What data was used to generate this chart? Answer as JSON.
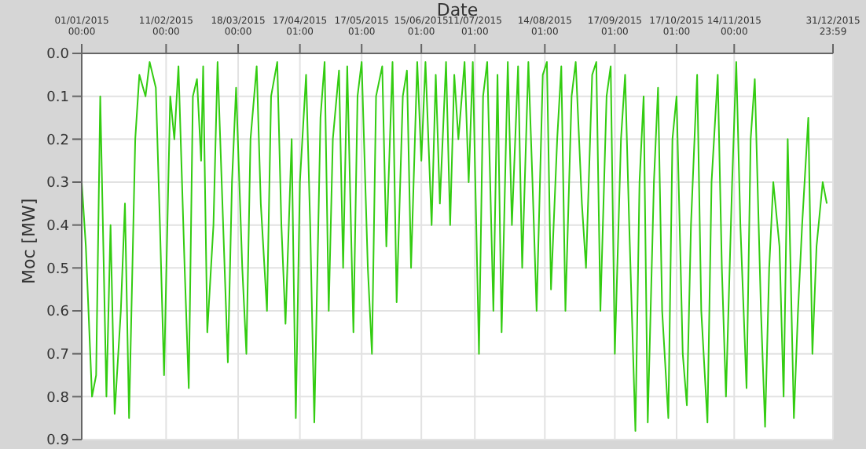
{
  "chart_data": {
    "type": "line",
    "xlabel": "Date",
    "ylabel": "Moc [MW]",
    "grid": true,
    "legend": false,
    "marker": "none",
    "line_style": "solid",
    "xlim": [
      "2015-01-01",
      "2015-12-31T23:59"
    ],
    "xticks": [
      {
        "value": "2015-01-01",
        "label": "01/01/2015 00:00"
      },
      {
        "value": "2015-02-11",
        "label": "11/02/2015 00:00"
      },
      {
        "value": "2015-03-18",
        "label": "18/03/2015 00:00"
      },
      {
        "value": "2015-04-17",
        "label": "17/04/2015 01:00"
      },
      {
        "value": "2015-05-17",
        "label": "17/05/2015 01:00"
      },
      {
        "value": "2015-06-15",
        "label": "15/06/2015 01:00"
      },
      {
        "value": "2015-07-11",
        "label": "11/07/2015 01:00"
      },
      {
        "value": "2015-08-14",
        "label": "14/08/2015 01:00"
      },
      {
        "value": "2015-09-17",
        "label": "17/09/2015 01:00"
      },
      {
        "value": "2015-10-17",
        "label": "17/10/2015 01:00"
      },
      {
        "value": "2015-11-14",
        "label": "14/11/2015 00:00"
      },
      {
        "value": "2015-12-31T23:59",
        "label": "31/12/2015 23:59"
      }
    ],
    "ylim": [
      0.9,
      0
    ],
    "yticks": [
      {
        "value": 0,
        "label": "0.0"
      },
      {
        "value": 0.1,
        "label": "0.1"
      },
      {
        "value": 0.2,
        "label": "0.2"
      },
      {
        "value": 0.3,
        "label": "0.3"
      },
      {
        "value": 0.4,
        "label": "0.4"
      },
      {
        "value": 0.5,
        "label": "0.5"
      },
      {
        "value": 0.6,
        "label": "0.6"
      },
      {
        "value": 0.7,
        "label": "0.7"
      },
      {
        "value": 0.8,
        "label": "0.8"
      },
      {
        "value": 0.9,
        "label": "0.9"
      }
    ],
    "x": [
      "2015-01-01",
      "2015-01-03",
      "2015-01-06",
      "2015-01-08",
      "2015-01-10",
      "2015-01-13",
      "2015-01-15",
      "2015-01-17",
      "2015-01-20",
      "2015-01-22",
      "2015-01-24",
      "2015-01-27",
      "2015-01-29",
      "2015-02-01",
      "2015-02-03",
      "2015-02-06",
      "2015-02-08",
      "2015-02-10",
      "2015-02-13",
      "2015-02-15",
      "2015-02-17",
      "2015-02-20",
      "2015-02-22",
      "2015-02-24",
      "2015-02-26",
      "2015-02-28",
      "2015-03-01",
      "2015-03-03",
      "2015-03-06",
      "2015-03-08",
      "2015-03-10",
      "2015-03-13",
      "2015-03-15",
      "2015-03-17",
      "2015-03-20",
      "2015-03-22",
      "2015-03-24",
      "2015-03-27",
      "2015-03-29",
      "2015-04-01",
      "2015-04-03",
      "2015-04-06",
      "2015-04-08",
      "2015-04-10",
      "2015-04-13",
      "2015-04-15",
      "2015-04-17",
      "2015-04-20",
      "2015-04-22",
      "2015-04-24",
      "2015-04-27",
      "2015-04-29",
      "2015-05-01",
      "2015-05-03",
      "2015-05-06",
      "2015-05-08",
      "2015-05-10",
      "2015-05-13",
      "2015-05-15",
      "2015-05-17",
      "2015-05-20",
      "2015-05-22",
      "2015-05-24",
      "2015-05-27",
      "2015-05-29",
      "2015-06-01",
      "2015-06-03",
      "2015-06-06",
      "2015-06-08",
      "2015-06-10",
      "2015-06-13",
      "2015-06-15",
      "2015-06-17",
      "2015-06-20",
      "2015-06-22",
      "2015-06-24",
      "2015-06-27",
      "2015-06-29",
      "2015-07-01",
      "2015-07-03",
      "2015-07-06",
      "2015-07-08",
      "2015-07-10",
      "2015-07-13",
      "2015-07-15",
      "2015-07-17",
      "2015-07-20",
      "2015-07-22",
      "2015-07-24",
      "2015-07-27",
      "2015-07-29",
      "2015-08-01",
      "2015-08-03",
      "2015-08-06",
      "2015-08-08",
      "2015-08-10",
      "2015-08-13",
      "2015-08-15",
      "2015-08-17",
      "2015-08-20",
      "2015-08-22",
      "2015-08-24",
      "2015-08-27",
      "2015-08-29",
      "2015-09-01",
      "2015-09-03",
      "2015-09-06",
      "2015-09-08",
      "2015-09-10",
      "2015-09-13",
      "2015-09-15",
      "2015-09-17",
      "2015-09-20",
      "2015-09-22",
      "2015-09-24",
      "2015-09-27",
      "2015-09-29",
      "2015-10-01",
      "2015-10-03",
      "2015-10-06",
      "2015-10-08",
      "2015-10-10",
      "2015-10-13",
      "2015-10-15",
      "2015-10-17",
      "2015-10-20",
      "2015-10-22",
      "2015-10-24",
      "2015-10-27",
      "2015-10-29",
      "2015-11-01",
      "2015-11-03",
      "2015-11-06",
      "2015-11-08",
      "2015-11-10",
      "2015-11-13",
      "2015-11-15",
      "2015-11-17",
      "2015-11-20",
      "2015-11-22",
      "2015-11-24",
      "2015-11-27",
      "2015-11-29",
      "2015-12-01",
      "2015-12-03",
      "2015-12-06",
      "2015-12-08",
      "2015-12-10",
      "2015-12-13",
      "2015-12-15",
      "2015-12-17",
      "2015-12-20",
      "2015-12-22",
      "2015-12-24",
      "2015-12-27",
      "2015-12-29"
    ],
    "series": [
      {
        "color": "#33cc11",
        "values": [
          0.3,
          0.45,
          0.8,
          0.75,
          0.1,
          0.8,
          0.4,
          0.84,
          0.6,
          0.35,
          0.85,
          0.2,
          0.05,
          0.1,
          0.02,
          0.08,
          0.4,
          0.75,
          0.1,
          0.2,
          0.03,
          0.5,
          0.78,
          0.1,
          0.06,
          0.25,
          0.03,
          0.65,
          0.4,
          0.02,
          0.3,
          0.72,
          0.3,
          0.08,
          0.5,
          0.7,
          0.2,
          0.03,
          0.35,
          0.6,
          0.1,
          0.02,
          0.4,
          0.63,
          0.2,
          0.85,
          0.3,
          0.05,
          0.4,
          0.86,
          0.15,
          0.02,
          0.6,
          0.2,
          0.04,
          0.5,
          0.03,
          0.65,
          0.1,
          0.02,
          0.5,
          0.7,
          0.1,
          0.03,
          0.45,
          0.02,
          0.58,
          0.1,
          0.04,
          0.5,
          0.02,
          0.25,
          0.02,
          0.4,
          0.05,
          0.35,
          0.02,
          0.4,
          0.05,
          0.2,
          0.02,
          0.3,
          0.02,
          0.7,
          0.1,
          0.02,
          0.6,
          0.05,
          0.65,
          0.02,
          0.4,
          0.03,
          0.5,
          0.02,
          0.3,
          0.6,
          0.05,
          0.02,
          0.55,
          0.2,
          0.03,
          0.6,
          0.1,
          0.02,
          0.35,
          0.5,
          0.05,
          0.02,
          0.6,
          0.1,
          0.03,
          0.7,
          0.2,
          0.05,
          0.4,
          0.88,
          0.3,
          0.1,
          0.86,
          0.3,
          0.08,
          0.6,
          0.85,
          0.2,
          0.1,
          0.7,
          0.82,
          0.4,
          0.05,
          0.6,
          0.86,
          0.3,
          0.05,
          0.5,
          0.8,
          0.3,
          0.02,
          0.4,
          0.78,
          0.2,
          0.06,
          0.6,
          0.87,
          0.5,
          0.3,
          0.45,
          0.8,
          0.2,
          0.85,
          0.6,
          0.4,
          0.15,
          0.7,
          0.45,
          0.3,
          0.35
        ]
      }
    ]
  }
}
